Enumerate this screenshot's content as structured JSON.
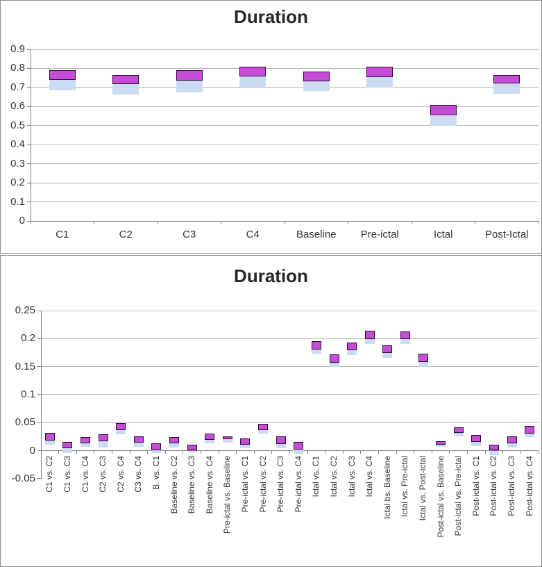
{
  "colors": {
    "upper_fill": "#c34dd4",
    "upper_border": "#2e0a35",
    "lower_fill": "#cbdcf2",
    "gridline": "#b8b8b8",
    "axis": "#808080",
    "text": "#333333",
    "title_text": "#262626",
    "panel_border": "#8c8c8c"
  },
  "chart_data": [
    {
      "type": "bar",
      "subtype": "floating-range-stacked",
      "title": "Duration",
      "ylim": [
        0,
        0.9
      ],
      "ytick_step": 0.1,
      "grid": true,
      "legend": "none",
      "categories": [
        "C1",
        "C2",
        "C3",
        "C4",
        "Baseline",
        "Pre-ictal",
        "Ictal",
        "Post-Ictal"
      ],
      "series": [
        {
          "name": "lower_segment",
          "color": "#cbdcf2"
        },
        {
          "name": "upper_segment",
          "color": "#c34dd4"
        }
      ],
      "bars_low_mid_high": [
        [
          0.685,
          0.74,
          0.792
        ],
        [
          0.662,
          0.718,
          0.766
        ],
        [
          0.675,
          0.735,
          0.79
        ],
        [
          0.702,
          0.757,
          0.808
        ],
        [
          0.68,
          0.733,
          0.784
        ],
        [
          0.7,
          0.755,
          0.808
        ],
        [
          0.5,
          0.552,
          0.608
        ],
        [
          0.665,
          0.722,
          0.766
        ]
      ]
    },
    {
      "type": "bar",
      "subtype": "floating-range-stacked",
      "title": "Duration",
      "ylim": [
        -0.05,
        0.25
      ],
      "ytick_step": 0.05,
      "grid": true,
      "legend": "none",
      "categories": [
        "C1 vs. C2",
        "C1 vs. C3",
        "C1 vs. C4",
        "C2 vs. C3",
        "C2 vs. C4",
        "C3 vs. C4",
        "B. vs. C1",
        "Baseline vs. C2",
        "Baseline vs. C3",
        "Baseline vs. C4",
        "Pre-ictal vs. Baseline",
        "Pre-ictal vs. C1",
        "Pre-ictal vs. C2",
        "Pre-ictal vs. C3",
        "Pre-ictal vs. C4",
        "Ictal vs. C1",
        "Ictal vs. C2",
        "Ictal vs. C3",
        "Ictal vs. C4",
        "Ictal bs. Baseline",
        "Ictal vs. Pre-ictal",
        "Ictal vs. Post-ictal",
        "Post-ictal vs. Baseline",
        "Post-ictal vs. Pre-ictal",
        "Post-ictal vs. C1",
        "Post-ictal vs. C2",
        "Post-ictal vs. C3",
        "Post-ictal vs. C4"
      ],
      "series": [
        {
          "name": "lower_segment",
          "color": "#cbdcf2"
        },
        {
          "name": "upper_segment",
          "color": "#c34dd4"
        }
      ],
      "bars_low_mid_high": [
        [
          0.011,
          0.018,
          0.032
        ],
        [
          -0.004,
          0.004,
          0.015
        ],
        [
          0.007,
          0.013,
          0.024
        ],
        [
          0.006,
          0.017,
          0.029
        ],
        [
          0.029,
          0.036,
          0.049
        ],
        [
          0.007,
          0.014,
          0.026
        ],
        [
          -0.004,
          0.001,
          0.013
        ],
        [
          0.006,
          0.013,
          0.024
        ],
        [
          -0.003,
          0.0,
          0.01
        ],
        [
          0.013,
          0.019,
          0.03
        ],
        [
          0.014,
          0.02,
          0.026
        ],
        [
          0.004,
          0.01,
          0.022
        ],
        [
          0.03,
          0.037,
          0.048
        ],
        [
          0.004,
          0.012,
          0.025
        ],
        [
          -0.005,
          0.002,
          0.015
        ],
        [
          0.173,
          0.181,
          0.196
        ],
        [
          0.149,
          0.157,
          0.172
        ],
        [
          0.17,
          0.179,
          0.193
        ],
        [
          0.191,
          0.199,
          0.214
        ],
        [
          0.166,
          0.174,
          0.188
        ],
        [
          0.191,
          0.199,
          0.213
        ],
        [
          0.15,
          0.158,
          0.173
        ],
        [
          0.007,
          0.01,
          0.017
        ],
        [
          0.025,
          0.032,
          0.042
        ],
        [
          0.008,
          0.016,
          0.028
        ],
        [
          -0.008,
          0.0,
          0.01
        ],
        [
          0.005,
          0.013,
          0.025
        ],
        [
          0.024,
          0.031,
          0.044
        ]
      ]
    }
  ]
}
